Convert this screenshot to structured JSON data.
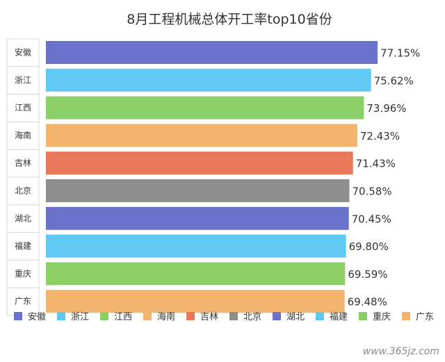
{
  "chart_data": {
    "type": "bar",
    "orientation": "horizontal",
    "title": "8月工程机械总体开工率top10省份",
    "categories": [
      "安徽",
      "浙江",
      "江西",
      "海南",
      "吉林",
      "北京",
      "湖北",
      "福建",
      "重庆",
      "广东"
    ],
    "values": [
      77.15,
      75.62,
      73.96,
      72.43,
      71.43,
      70.58,
      70.45,
      69.8,
      69.59,
      69.48
    ],
    "value_labels": [
      "77.15%",
      "75.62%",
      "73.96%",
      "72.43%",
      "71.43%",
      "70.58%",
      "70.45%",
      "69.80%",
      "69.59%",
      "69.48%"
    ],
    "colors": [
      "#6a73c9",
      "#5fc8f3",
      "#8ccf68",
      "#f3b56e",
      "#e9785b",
      "#8e8e8e",
      "#6a73c9",
      "#5fc8f3",
      "#8ccf68",
      "#f3b56e"
    ],
    "legend": {
      "position": "bottom",
      "entries": [
        "安徽",
        "浙江",
        "江西",
        "海南",
        "吉林",
        "北京",
        "湖北",
        "福建",
        "重庆",
        "广东"
      ]
    },
    "grid": false
  },
  "watermark": "www.365jz.com",
  "colors": {
    "border": "#d9d9d9",
    "text": "#333333"
  }
}
